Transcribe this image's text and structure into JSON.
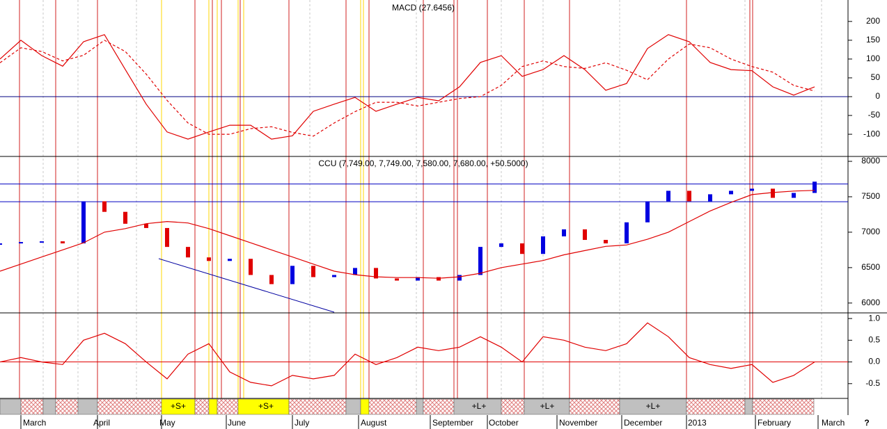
{
  "chart_data": [
    {
      "type": "line",
      "title": "MACD (27.6456)",
      "ylim": [
        -159,
        257
      ],
      "yticks": [
        -100,
        -50,
        0,
        50,
        100,
        150,
        200
      ],
      "reference_lines": [
        0
      ],
      "reference_color": "#000080",
      "series": [
        {
          "color": "#e00000",
          "values": [
            100,
            150,
            109,
            81,
            146,
            165,
            72,
            -20,
            -94,
            -113,
            -94,
            -76,
            -76,
            -113,
            -104,
            -39,
            -20,
            -2,
            -39,
            -20,
            -2,
            -11,
            26,
            91,
            109,
            54,
            72,
            109,
            72,
            17,
            35,
            128,
            165,
            146,
            91,
            72,
            69,
            26,
            4,
            26
          ]
        },
        {
          "color": "#e00000",
          "dashed": true,
          "values": [
            90,
            130,
            120,
            95,
            110,
            150,
            120,
            60,
            -10,
            -70,
            -100,
            -100,
            -85,
            -80,
            -95,
            -105,
            -70,
            -40,
            -15,
            -15,
            -25,
            -15,
            -5,
            0,
            30,
            80,
            95,
            80,
            75,
            90,
            70,
            45,
            100,
            140,
            130,
            100,
            80,
            65,
            30,
            15
          ]
        }
      ]
    },
    {
      "type": "line",
      "title": "CCU (7,749.00, 7,749.00, 7,580.00, 7,680.00, +50.5000)",
      "ylim": [
        5861,
        8069
      ],
      "yticks": [
        6000,
        6500,
        7000,
        7500,
        8000
      ],
      "reference_lines": [
        7680,
        7430
      ],
      "reference_color": "#0000c0",
      "series": [
        {
          "marker": "candle",
          "up_color": "#0000e0",
          "down_color": "#e00000",
          "values": [
            6842,
            6861,
            6871,
            6842,
            7436,
            7287,
            7119,
            7059,
            6792,
            6644,
            6594,
            6624,
            6396,
            6267,
            6525,
            6366,
            6396,
            6495,
            6347,
            6317,
            6366,
            6317,
            6396,
            6792,
            6842,
            6693,
            6941,
            7040,
            6891,
            6842,
            7139,
            7436,
            7584,
            7436,
            7535,
            7584,
            7614,
            7485,
            7554,
            7713
          ]
        },
        {
          "color": "#e00000",
          "values": [
            6450,
            6550,
            6650,
            6750,
            6850,
            7000,
            7050,
            7120,
            7150,
            7130,
            7050,
            6950,
            6850,
            6750,
            6650,
            6550,
            6450,
            6400,
            6370,
            6360,
            6360,
            6350,
            6370,
            6420,
            6500,
            6550,
            6600,
            6680,
            6740,
            6800,
            6820,
            6900,
            7000,
            7150,
            7300,
            7420,
            7530,
            7560,
            7580,
            7590
          ]
        }
      ]
    },
    {
      "type": "line",
      "ylim": [
        -0.84,
        1.13
      ],
      "yticks": [
        {
          "value": -0.5,
          "label": "-0.5"
        },
        {
          "value": 0,
          "label": "0.0"
        },
        {
          "value": 0.5,
          "label": "0.5"
        },
        {
          "value": 1,
          "label": "1.0"
        }
      ],
      "reference_lines": [
        0
      ],
      "reference_color": "#e00000",
      "series": [
        {
          "color": "#e00000",
          "values": [
            0,
            0.1,
            0,
            -0.06,
            0.5,
            0.66,
            0.42,
            0,
            -0.39,
            0.18,
            0.42,
            -0.23,
            -0.47,
            -0.55,
            -0.31,
            -0.39,
            -0.31,
            0.18,
            -0.06,
            0.1,
            0.34,
            0.26,
            0.34,
            0.58,
            0.34,
            0,
            0.58,
            0.5,
            0.34,
            0.26,
            0.42,
            0.9,
            0.58,
            0.1,
            -0.06,
            -0.15,
            -0.06,
            -0.47,
            -0.31,
            0
          ]
        }
      ]
    }
  ],
  "bands": [
    "+S+",
    "+S+",
    "+L+",
    "+L+",
    "+L+"
  ],
  "months": [
    "March",
    "April",
    "May",
    "June",
    "July",
    "August",
    "September",
    "October",
    "November",
    "December",
    "2013",
    "February",
    "March"
  ],
  "corner": "?"
}
